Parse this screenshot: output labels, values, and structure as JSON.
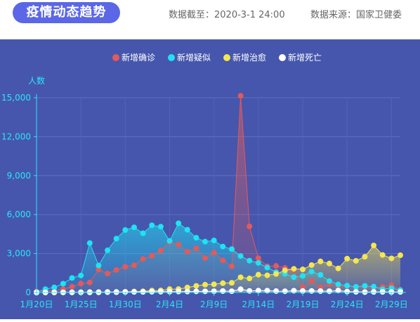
{
  "header": {
    "title": "疫情动态趋势",
    "cutoff": "数据截至：2020-3-1 24:00",
    "source": "数据来源：国家卫健委"
  },
  "chart_data": {
    "type": "line",
    "ylabel": "人数",
    "ylim": [
      0,
      15000
    ],
    "yticks": [
      0,
      3000,
      6000,
      9000,
      12000,
      15000
    ],
    "ytick_labels": [
      "0",
      "3,000",
      "6,000",
      "9,000",
      "12,000",
      "15,000"
    ],
    "x": [
      "1月20日",
      "1月21日",
      "1月22日",
      "1月23日",
      "1月24日",
      "1月25日",
      "1月26日",
      "1月27日",
      "1月28日",
      "1月29日",
      "1月30日",
      "1月31日",
      "2月1日",
      "2月2日",
      "2月3日",
      "2月4日",
      "2月5日",
      "2月6日",
      "2月7日",
      "2月8日",
      "2月9日",
      "2月10日",
      "2月11日",
      "2月12日",
      "2月13日",
      "2月14日",
      "2月15日",
      "2月16日",
      "2月17日",
      "2月18日",
      "2月19日",
      "2月20日",
      "2月21日",
      "2月22日",
      "2月23日",
      "2月24日",
      "2月25日",
      "2月26日",
      "2月27日",
      "2月28日",
      "2月29日",
      "3月1日"
    ],
    "xtick_labels": [
      "1月20日",
      "1月25日",
      "1月30日",
      "2月4日",
      "2月9日",
      "2月14日",
      "2月19日",
      "2月24日",
      "2月29日"
    ],
    "legend_position": "top-center",
    "grid": true,
    "series": [
      {
        "name": "新增确诊",
        "color": "#e25a5a",
        "values": [
          77,
          149,
          131,
          259,
          444,
          688,
          769,
          1771,
          1459,
          1737,
          1982,
          2102,
          2590,
          2829,
          3235,
          3887,
          3694,
          3143,
          3399,
          2656,
          3062,
          2478,
          2015,
          15152,
          5090,
          2641,
          2009,
          2048,
          1886,
          1749,
          394,
          889,
          397,
          648,
          409,
          508,
          406,
          433,
          327,
          427,
          573,
          202
        ]
      },
      {
        "name": "新增疑似",
        "color": "#1ee3f2",
        "values": [
          27,
          257,
          393,
          680,
          1118,
          1309,
          3806,
          2077,
          3248,
          4148,
          4812,
          5019,
          4562,
          5173,
          5072,
          3971,
          5328,
          4833,
          4214,
          3916,
          4008,
          3536,
          3342,
          2807,
          2450,
          2277,
          1918,
          1563,
          1432,
          1185,
          1277,
          1614,
          1361,
          882,
          620,
          530,
          439,
          508,
          452,
          248,
          335,
          175
        ]
      },
      {
        "name": "新增治愈",
        "color": "#f3e651",
        "values": [
          0,
          0,
          0,
          6,
          3,
          11,
          2,
          9,
          43,
          21,
          47,
          72,
          85,
          147,
          157,
          262,
          261,
          387,
          510,
          600,
          632,
          716,
          744,
          1171,
          1081,
          1373,
          1323,
          1425,
          1701,
          1824,
          1779,
          2109,
          2394,
          2231,
          1852,
          2606,
          2439,
          2752,
          3622,
          2889,
          2628,
          2867
        ]
      },
      {
        "name": "新增死亡",
        "color": "#ffffff",
        "values": [
          0,
          3,
          8,
          8,
          16,
          15,
          24,
          26,
          26,
          38,
          43,
          46,
          45,
          57,
          64,
          65,
          73,
          73,
          86,
          89,
          97,
          108,
          97,
          254,
          121,
          143,
          142,
          105,
          98,
          136,
          114,
          118,
          109,
          97,
          150,
          71,
          52,
          29,
          44,
          47,
          35,
          42
        ]
      }
    ]
  }
}
